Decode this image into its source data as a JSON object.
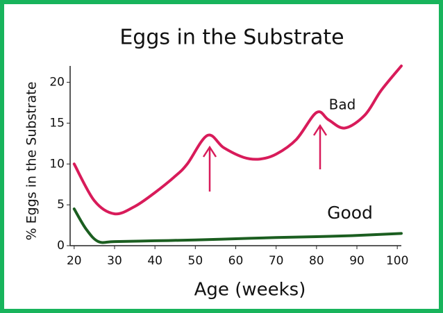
{
  "chart_data": {
    "type": "line",
    "title": "Eggs in the Substrate",
    "x_label": "Age (weeks)",
    "y_label": "% Eggs in the Substrate",
    "series": [
      {
        "name": "Bad",
        "color": "#d81b5a",
        "x": [
          20,
          25,
          30,
          35,
          40,
          45,
          48,
          53,
          57,
          62,
          66,
          70,
          75,
          80,
          83,
          87,
          92,
          96,
          101
        ],
        "values": [
          10,
          5.5,
          3.9,
          4.8,
          6.5,
          8.5,
          10,
          13.5,
          12,
          10.8,
          10.6,
          11.2,
          13,
          16.3,
          15.4,
          14.4,
          16,
          19,
          22
        ]
      },
      {
        "name": "Good",
        "color": "#1b5e20",
        "x": [
          20,
          23,
          26,
          30,
          40,
          50,
          60,
          70,
          80,
          90,
          101
        ],
        "values": [
          4.5,
          2,
          0.5,
          0.5,
          0.6,
          0.7,
          0.85,
          1.0,
          1.1,
          1.25,
          1.5
        ]
      }
    ],
    "xlim": [
      19,
      101
    ],
    "ylim": [
      0,
      22
    ],
    "xticks": [
      20,
      30,
      40,
      50,
      60,
      70,
      80,
      90,
      100
    ],
    "yticks": [
      0,
      5,
      10,
      15,
      20
    ],
    "grid": false
  }
}
